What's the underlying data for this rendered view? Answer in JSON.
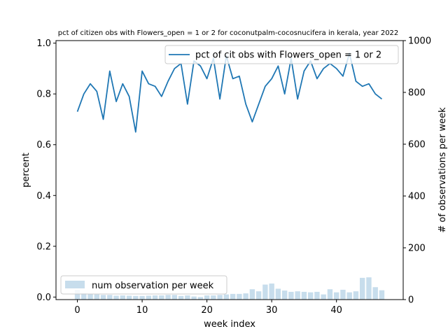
{
  "chart_data": {
    "type": "line",
    "title": "pct of citizen obs with Flowers_open = 1 or 2 for coconutpalm-cocosnucifera in kerala, year 2022",
    "xlabel": "week index",
    "ylabel_left": "percent",
    "ylabel_right": "# of observations per week",
    "xlim": [
      -3.3,
      50.3
    ],
    "ylim_left": [
      -0.01,
      1.01
    ],
    "ylim_right": [
      0,
      1000
    ],
    "xticks": [
      0,
      10,
      20,
      30,
      40
    ],
    "yticks_left": [
      0.0,
      0.2,
      0.4,
      0.6,
      0.8,
      1.0
    ],
    "yticks_right": [
      0,
      200,
      400,
      600,
      800,
      1000
    ],
    "grid": false,
    "colors": {
      "line": "#1f77b4",
      "bar": "#1f77b4",
      "bar_alpha": 0.25
    },
    "series": [
      {
        "name": "pct of cit obs with Flowers_open = 1 or 2",
        "type": "line",
        "axis": "left",
        "x": [
          0,
          1,
          2,
          3,
          4,
          5,
          6,
          7,
          8,
          9,
          10,
          11,
          12,
          13,
          14,
          15,
          16,
          17,
          18,
          19,
          20,
          21,
          22,
          23,
          24,
          25,
          26,
          27,
          28,
          29,
          30,
          31,
          32,
          33,
          34,
          35,
          36,
          37,
          38,
          39,
          40,
          41,
          42,
          43,
          44,
          45,
          46,
          47
        ],
        "values": [
          0.73,
          0.8,
          0.84,
          0.81,
          0.7,
          0.89,
          0.77,
          0.84,
          0.79,
          0.65,
          0.89,
          0.84,
          0.83,
          0.79,
          0.85,
          0.9,
          0.92,
          0.76,
          0.93,
          0.91,
          0.86,
          0.94,
          0.78,
          0.95,
          0.86,
          0.87,
          0.76,
          0.69,
          0.76,
          0.83,
          0.86,
          0.91,
          0.8,
          0.94,
          0.78,
          0.89,
          0.93,
          0.86,
          0.9,
          0.92,
          0.9,
          0.87,
          0.96,
          0.85,
          0.83,
          0.84,
          0.8,
          0.78
        ]
      },
      {
        "name": "num observation per week",
        "type": "bar",
        "axis": "right",
        "x": [
          0,
          1,
          2,
          3,
          4,
          5,
          6,
          7,
          8,
          9,
          10,
          11,
          12,
          13,
          14,
          15,
          16,
          17,
          18,
          19,
          20,
          21,
          22,
          23,
          24,
          25,
          26,
          27,
          28,
          29,
          30,
          31,
          32,
          33,
          34,
          35,
          36,
          37,
          38,
          39,
          40,
          41,
          42,
          43,
          44,
          45,
          46,
          47
        ],
        "values": [
          38,
          25,
          22,
          20,
          18,
          18,
          15,
          16,
          15,
          14,
          14,
          15,
          16,
          16,
          18,
          18,
          14,
          16,
          12,
          10,
          16,
          16,
          18,
          20,
          22,
          22,
          24,
          40,
          32,
          58,
          62,
          42,
          35,
          30,
          32,
          30,
          28,
          30,
          20,
          40,
          28,
          38,
          28,
          32,
          84,
          86,
          48,
          36
        ]
      }
    ],
    "legend_upper": {
      "location": "upper-right",
      "label": "pct of cit obs with Flowers_open = 1 or 2"
    },
    "legend_lower": {
      "location": "lower-left",
      "label": "num observation per week"
    }
  }
}
